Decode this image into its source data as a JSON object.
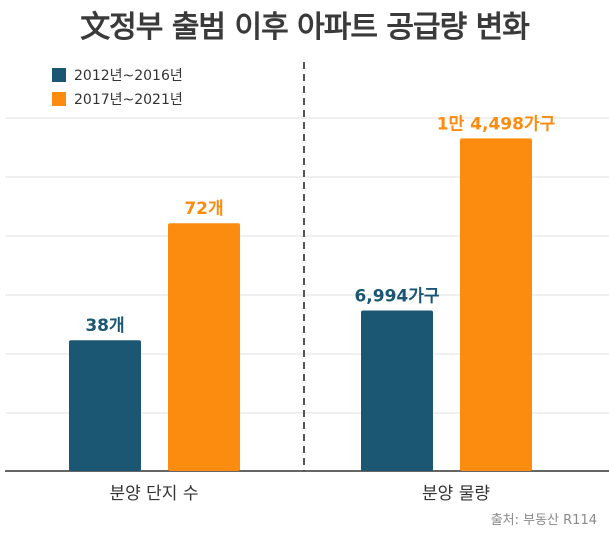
{
  "title": "文정부 출범 이후 아파트 공급량 변화",
  "source": "출처: 부동산 R114",
  "colors": {
    "series1": "#1b5673",
    "series2": "#fb8c0f",
    "grid": "#e2e2e2",
    "divider": "#555555",
    "axis": "#333333"
  },
  "chart_data": [
    {
      "type": "bar",
      "title": "",
      "categories": [
        "분양 단지 수"
      ],
      "series": [
        {
          "name": "2012년~2016년",
          "values": [
            38
          ],
          "labels": [
            "38개"
          ]
        },
        {
          "name": "2017년~2021년",
          "values": [
            72
          ],
          "labels": [
            "72개"
          ]
        }
      ],
      "ylim": [
        0,
        120
      ],
      "grid": true,
      "legend": "top-left"
    },
    {
      "type": "bar",
      "title": "",
      "categories": [
        "분양 물량"
      ],
      "series": [
        {
          "name": "2012년~2016년",
          "values": [
            6994
          ],
          "labels": [
            "6,994가구"
          ]
        },
        {
          "name": "2017년~2021년",
          "values": [
            14498
          ],
          "labels": [
            "1만 4,498가구"
          ]
        }
      ],
      "ylim": [
        0,
        18000
      ],
      "grid": true
    }
  ]
}
